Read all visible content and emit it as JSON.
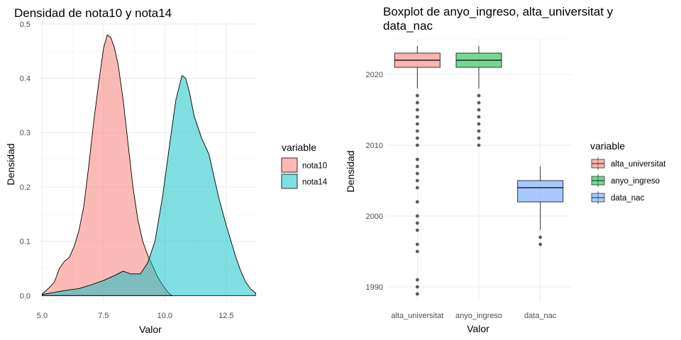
{
  "chart_data": [
    {
      "type": "area",
      "title": "Densidad de nota10 y nota14",
      "xlabel": "Valor",
      "ylabel": "Densidad",
      "xlim": [
        4.9,
        13.75
      ],
      "ylim": [
        -0.01,
        0.505
      ],
      "xticks": [
        5.0,
        7.5,
        10.0,
        12.5
      ],
      "xtick_labels": [
        "5.0",
        "7.5",
        "10.0",
        "12.5"
      ],
      "yticks": [
        0.0,
        0.1,
        0.2,
        0.3,
        0.4,
        0.5
      ],
      "ytick_labels": [
        "0.0",
        "0.1",
        "0.2",
        "0.3",
        "0.4",
        "0.5"
      ],
      "grid": true,
      "legend": {
        "title": "variable",
        "position": "right"
      },
      "series": [
        {
          "name": "nota10",
          "color": "#F8766D",
          "x": [
            5.0,
            5.3,
            5.5,
            5.7,
            5.9,
            6.1,
            6.3,
            6.5,
            6.7,
            6.9,
            7.1,
            7.3,
            7.5,
            7.65,
            7.8,
            7.95,
            8.1,
            8.3,
            8.5,
            8.7,
            8.9,
            9.1,
            9.3,
            9.5,
            9.7,
            9.9,
            10.1,
            10.2,
            10.3
          ],
          "y": [
            0.003,
            0.015,
            0.025,
            0.05,
            0.063,
            0.07,
            0.09,
            0.12,
            0.165,
            0.24,
            0.32,
            0.39,
            0.455,
            0.48,
            0.475,
            0.455,
            0.425,
            0.36,
            0.28,
            0.2,
            0.14,
            0.1,
            0.075,
            0.055,
            0.035,
            0.02,
            0.008,
            0.003,
            0.0
          ]
        },
        {
          "name": "nota14",
          "color": "#00BFC4",
          "x": [
            5.0,
            5.5,
            6.0,
            6.5,
            7.0,
            7.5,
            8.0,
            8.3,
            8.6,
            9.0,
            9.3,
            9.6,
            9.9,
            10.2,
            10.45,
            10.7,
            10.85,
            11.0,
            11.2,
            11.5,
            11.8,
            12.0,
            12.2,
            12.5,
            12.7,
            12.9,
            13.1,
            13.3,
            13.5,
            13.7
          ],
          "y": [
            0.002,
            0.006,
            0.01,
            0.013,
            0.02,
            0.028,
            0.038,
            0.045,
            0.04,
            0.04,
            0.06,
            0.1,
            0.18,
            0.28,
            0.36,
            0.405,
            0.4,
            0.375,
            0.33,
            0.29,
            0.26,
            0.22,
            0.18,
            0.13,
            0.1,
            0.07,
            0.045,
            0.025,
            0.012,
            0.005
          ]
        }
      ]
    },
    {
      "type": "box",
      "title": "Boxplot de anyo_ingreso, alta_universitat y data_nac",
      "title_lines": [
        "Boxplot de anyo_ingreso, alta_universitat y",
        "data_nac"
      ],
      "xlabel": "Valor",
      "ylabel": "Densidad",
      "ylim": [
        1988,
        2025
      ],
      "yticks": [
        1990,
        2000,
        2010,
        2020
      ],
      "ytick_labels": [
        "1990",
        "2000",
        "2010",
        "2020"
      ],
      "grid": true,
      "categories": [
        "alta_universitat",
        "anyo_ingreso",
        "data_nac"
      ],
      "legend": {
        "title": "variable",
        "position": "right"
      },
      "series": [
        {
          "name": "alta_universitat",
          "color": "#F8766D",
          "whisker_low": 2018,
          "q1": 2021,
          "median": 2022,
          "q3": 2023,
          "whisker_high": 2024,
          "outliers": [
            2017,
            2016,
            2015,
            2014,
            2013,
            2012,
            2011,
            2010,
            2008,
            2007,
            2006,
            2005,
            2004,
            2002,
            2000,
            1999,
            1998,
            1996,
            1995,
            1991,
            1990,
            1989
          ]
        },
        {
          "name": "anyo_ingreso",
          "color": "#00BA38",
          "whisker_low": 2018,
          "q1": 2021,
          "median": 2022,
          "q3": 2023,
          "whisker_high": 2024,
          "outliers": [
            2017,
            2016,
            2015,
            2014,
            2013,
            2012,
            2011,
            2010
          ]
        },
        {
          "name": "data_nac",
          "color": "#619CFF",
          "whisker_low": 1998,
          "q1": 2002,
          "median": 2004,
          "q3": 2005,
          "whisker_high": 2007,
          "outliers": [
            1997,
            1996
          ]
        }
      ]
    }
  ]
}
